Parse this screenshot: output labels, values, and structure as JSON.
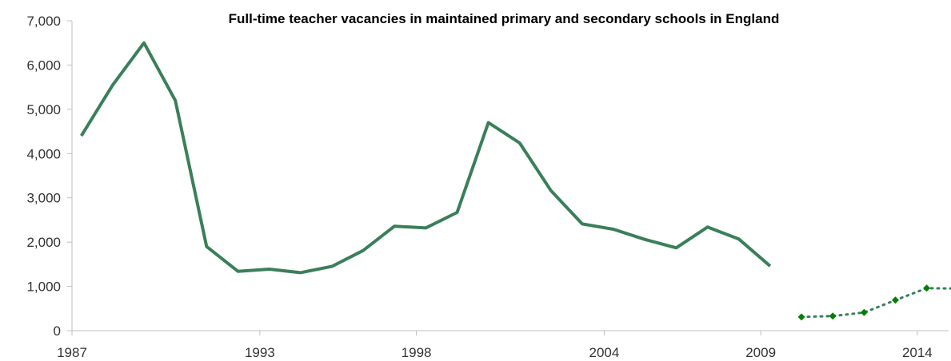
{
  "chart_data": {
    "type": "line",
    "title": "Full-time teacher vacancies in maintained  primary and secondary schools in England",
    "xlabel": "",
    "ylabel": "",
    "xlim": [
      1987,
      2015
    ],
    "ylim": [
      0,
      7000
    ],
    "y_ticks": [
      0,
      1000,
      2000,
      3000,
      4000,
      5000,
      6000,
      7000
    ],
    "y_tick_labels": [
      "0",
      "1,000",
      "2,000",
      "3,000",
      "4,000",
      "5,000",
      "6,000",
      "7,000"
    ],
    "x_ticks": [
      1987,
      1993,
      1998,
      2004,
      2009,
      2014
    ],
    "x_tick_labels": [
      "1987",
      "1993",
      "1998",
      "2004",
      "2009",
      "2014"
    ],
    "grid": false,
    "series": [
      {
        "style": "solid",
        "color": "#3a7f5a",
        "x": [
          1987.3,
          1988.3,
          1989.3,
          1990.3,
          1991.3,
          1992.3,
          1993.3,
          1994.3,
          1995.3,
          1996.3,
          1997.3,
          1998.3,
          1999.3,
          2000.3,
          2001.3,
          2002.3,
          2003.3,
          2004.3,
          2005.3,
          2006.3,
          2007.3,
          2008.3,
          2009.3
        ],
        "y": [
          4400,
          5550,
          6500,
          5200,
          1900,
          1340,
          1390,
          1310,
          1450,
          1810,
          2360,
          2320,
          2670,
          4700,
          4240,
          3160,
          2410,
          2290,
          2060,
          1870,
          2340,
          2070,
          1460
        ]
      },
      {
        "style": "dotted",
        "color": "#3a7f5a",
        "marker_color": "#008000",
        "x": [
          2010.3,
          2011.3,
          2012.3,
          2013.3,
          2014.3,
          2015.3
        ],
        "y": [
          310,
          330,
          410,
          690,
          960,
          950
        ],
        "markers": [
          true,
          true,
          true,
          true,
          true,
          false
        ]
      }
    ]
  }
}
